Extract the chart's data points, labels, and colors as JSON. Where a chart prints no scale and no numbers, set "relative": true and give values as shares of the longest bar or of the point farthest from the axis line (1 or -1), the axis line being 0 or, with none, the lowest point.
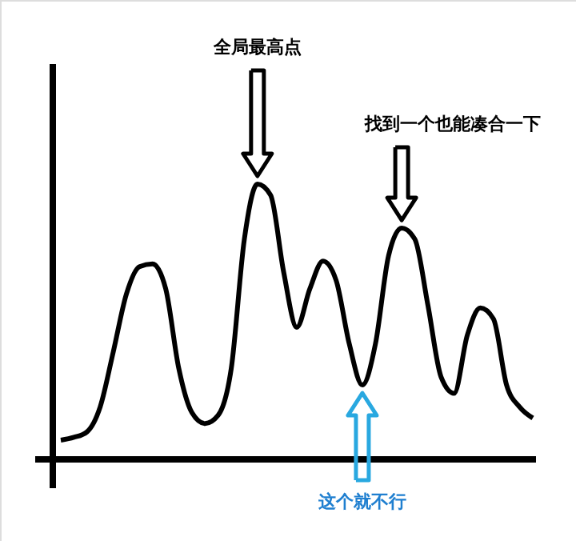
{
  "chart_data": {
    "type": "line",
    "relative": true,
    "categories": [
      null,
      null,
      null,
      null,
      null,
      null,
      null,
      null,
      null,
      null,
      null,
      null,
      null,
      null,
      null,
      null,
      null,
      null,
      null,
      null,
      null,
      null,
      null,
      null,
      null,
      null,
      null,
      null,
      null,
      null,
      null,
      null,
      null,
      null,
      null,
      null,
      null
    ],
    "series": [
      {
        "color": "#000000",
        "values": [
          0.07,
          0.08,
          0.1,
          0.19,
          0.39,
          0.6,
          0.7,
          0.71,
          0.62,
          0.33,
          0.17,
          0.13,
          0.16,
          0.33,
          0.8,
          1.0,
          0.96,
          0.68,
          0.48,
          0.62,
          0.72,
          0.65,
          0.42,
          0.27,
          0.42,
          0.74,
          0.84,
          0.8,
          0.56,
          0.3,
          0.24,
          0.45,
          0.55,
          0.51,
          0.27,
          0.19,
          0.15
        ]
      }
    ],
    "annotations": [
      "全局最高点",
      "找到一个也能凑合一下",
      "这个就不行"
    ]
  }
}
